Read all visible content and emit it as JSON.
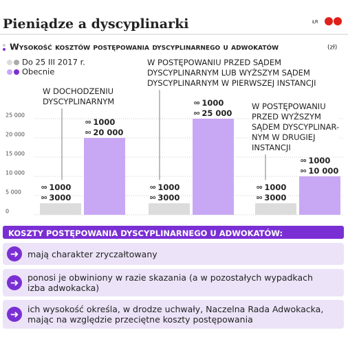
{
  "header": {
    "title": "Pieniądze a dyscyplinarki",
    "logo": "ŁR"
  },
  "chart_data": {
    "type": "bar",
    "subtitle": "Wysokość kosztów postępowania dyscyplinarnego u adwokatów",
    "unit": "(zł)",
    "categories": [
      "W DOCHODZENIU\nDYSCYPLINARNYM",
      "W POSTĘPOWANIU PRZED SĄDEM\nDYSCYPLINARNYM LUB WYŻSZYM SĄDEM\nDYSCYPLINARNYM W PIERWSZEJ INSTANCJI",
      "W POSTĘPOWANIU\nPRZED WYŻSZYM\nSĄDEM DYSCYPLINAR-\nNYM W DRUGIEJ\nINSTANCJI"
    ],
    "series": [
      {
        "name": "Do 25 III 2017 r.",
        "color": "#dcdcdc",
        "min_values": [
          1000,
          1000,
          1000
        ],
        "values": [
          3000,
          3000,
          3000
        ],
        "value_labels": [
          "3000",
          "3000",
          "3000"
        ]
      },
      {
        "name": "Obecnie",
        "color": "#c8a8f4",
        "min_values": [
          1000,
          1000,
          1000
        ],
        "values": [
          20000,
          25000,
          10000
        ],
        "value_labels": [
          "20 000",
          "25 000",
          "10 000"
        ]
      }
    ],
    "range_from": "od",
    "range_to": "do",
    "ylim": [
      0,
      25000
    ],
    "yticks": [
      0,
      {
        "value": 5000,
        "label": "5 000"
      },
      {
        "value": 10000,
        "label": "10 000"
      },
      {
        "value": 15000,
        "label": "15 000"
      },
      {
        "value": 20000,
        "label": "20 000"
      },
      {
        "value": 25000,
        "label": "25 000"
      }
    ],
    "grid": true
  },
  "panel": {
    "title": "KOSZTY POSTĘPOWANIA DYSCYPLINARNEGO U ADWOKATÓW:",
    "items": [
      "mają charakter zryczałtowany",
      "ponosi je obwiniony w razie skazania (a w pozostałych wypadkach izba adwokacka)",
      "ich wysokość określa, w drodze uchwały, Naczelna Rada Adwokacka, mając na względzie przeciętne koszty postępowania"
    ]
  }
}
